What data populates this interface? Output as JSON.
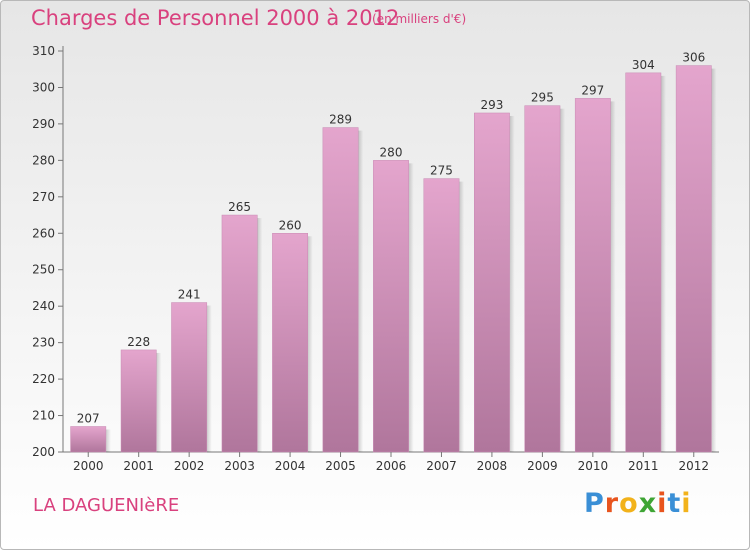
{
  "header": {
    "title": "Charges de Personnel 2000 à 2012",
    "unit_note": "(en milliers d'€)"
  },
  "footer": {
    "commune": "LA DAGUENIèRE",
    "logo_letters": [
      "P",
      "r",
      "o",
      "x",
      "i",
      "t",
      "i"
    ],
    "logo_colors": [
      "#3a8fd6",
      "#e8541e",
      "#f2b21b",
      "#3fa535",
      "#e8541e",
      "#3a8fd6",
      "#f2b21b"
    ]
  },
  "chart_data": {
    "type": "bar",
    "title": "Charges de Personnel 2000 à 2012",
    "subtitle": "(en milliers d'€)",
    "categories": [
      "2000",
      "2001",
      "2002",
      "2003",
      "2004",
      "2005",
      "2006",
      "2007",
      "2008",
      "2009",
      "2010",
      "2011",
      "2012"
    ],
    "values": [
      207,
      228,
      241,
      265,
      260,
      289,
      280,
      275,
      293,
      295,
      297,
      304,
      306
    ],
    "ylim": [
      200,
      310
    ],
    "yticks": [
      200,
      210,
      220,
      230,
      240,
      250,
      260,
      270,
      280,
      290,
      300,
      310
    ],
    "grid": false,
    "bar_color_top": "#e4a5cd",
    "bar_color_bottom": "#b0769c"
  }
}
